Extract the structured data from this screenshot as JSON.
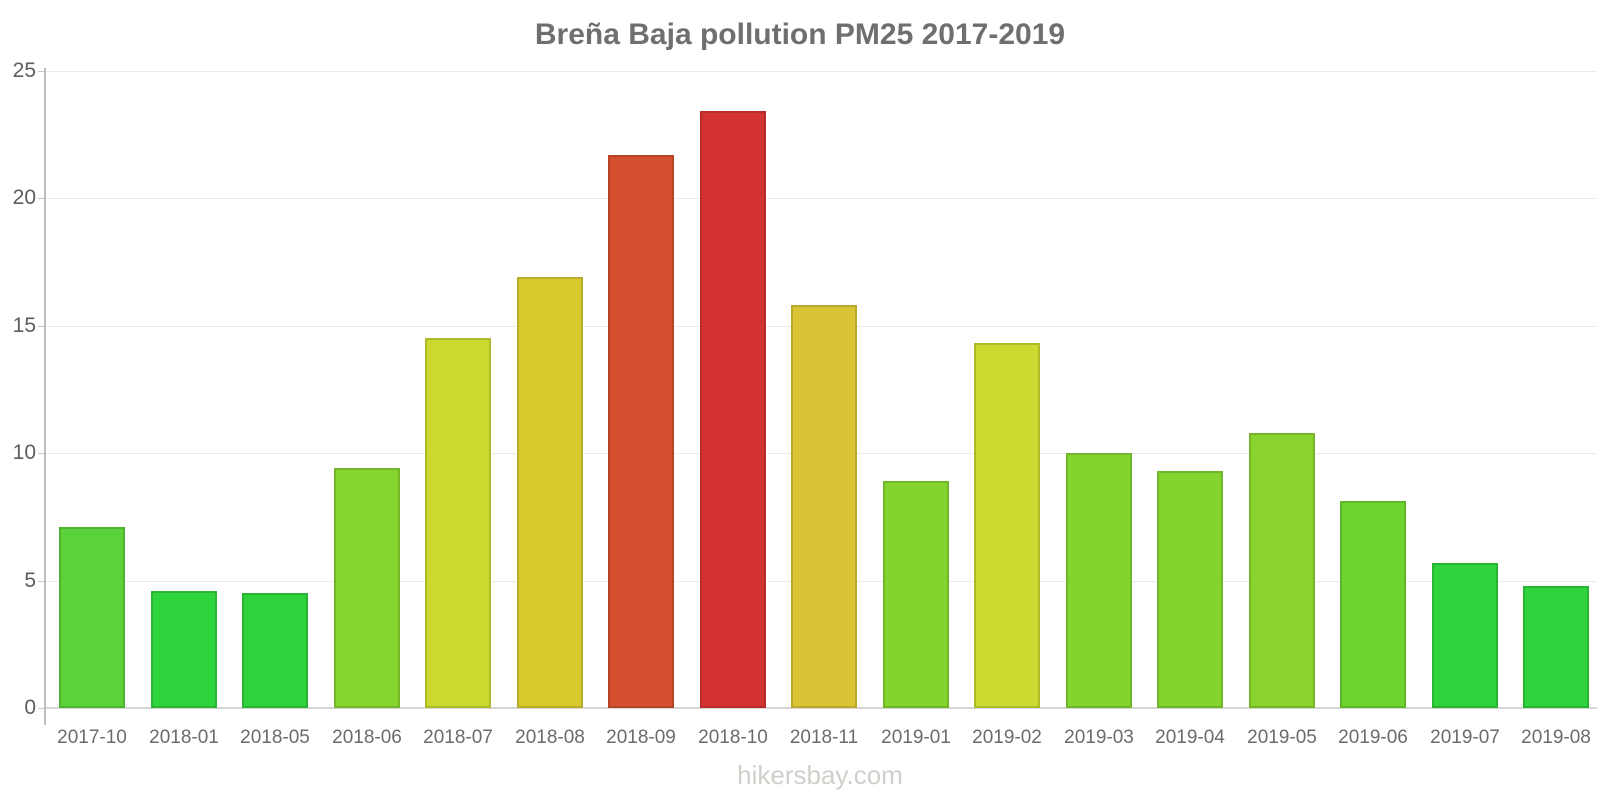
{
  "watermark": "hikersbay.com",
  "chart_data": {
    "type": "bar",
    "title": "Breña Baja pollution PM25 2017-2019",
    "xlabel": "",
    "ylabel": "",
    "ylim": [
      0,
      25
    ],
    "yticks": [
      0,
      5,
      10,
      15,
      20,
      25
    ],
    "grid": true,
    "legend": false,
    "categories": [
      "2017-10",
      "2018-01",
      "2018-05",
      "2018-06",
      "2018-07",
      "2018-08",
      "2018-09",
      "2018-10",
      "2018-11",
      "2019-01",
      "2019-02",
      "2019-03",
      "2019-04",
      "2019-05",
      "2019-06",
      "2019-07",
      "2019-08"
    ],
    "values": [
      7.1,
      4.6,
      4.5,
      9.4,
      14.5,
      16.9,
      21.7,
      23.4,
      15.8,
      8.9,
      14.3,
      10.0,
      9.3,
      10.8,
      8.1,
      5.7,
      4.8
    ],
    "colors": [
      "#5bd23a",
      "#2fd33c",
      "#2fd33c",
      "#87d52f",
      "#cbd92f",
      "#d8c92f",
      "#d5502e",
      "#d43333",
      "#d8c434",
      "#84d430",
      "#ccd930",
      "#84d430",
      "#84d430",
      "#8bd32e",
      "#6ed430",
      "#2fd33c",
      "#2fd33c"
    ]
  }
}
